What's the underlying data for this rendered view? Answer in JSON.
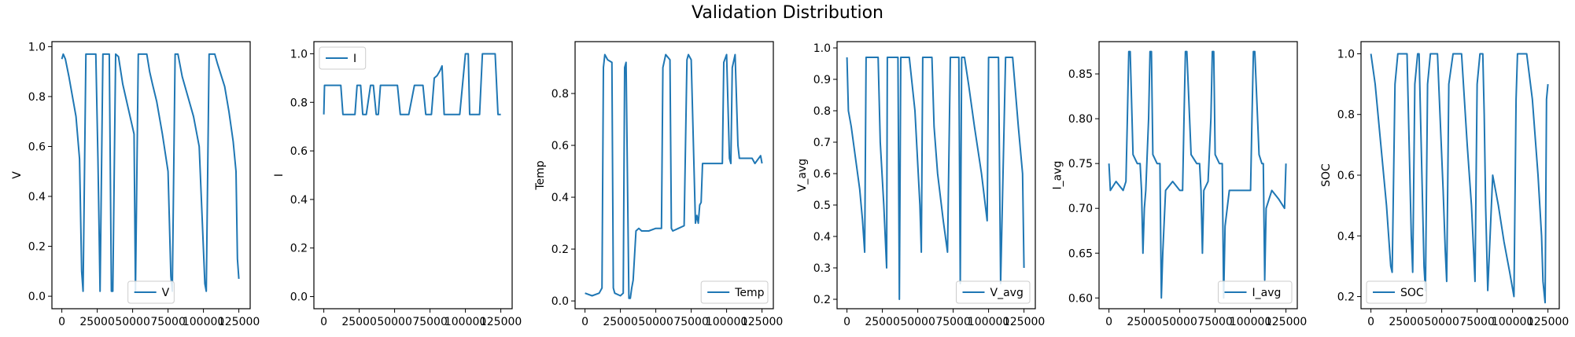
{
  "figure": {
    "title": "Validation Distribution"
  },
  "colors": {
    "series": "#1f77b4",
    "axes": "#000000",
    "legend_frame": "#cccccc"
  },
  "chart_data": [
    {
      "type": "line",
      "id": "V",
      "title": "",
      "xlabel": "",
      "ylabel": "V",
      "xlim": [
        -7000,
        133000
      ],
      "ylim": [
        -0.05,
        1.02
      ],
      "xticks": [
        0,
        25000,
        50000,
        75000,
        100000,
        125000
      ],
      "xtick_labels": [
        "0",
        "25000",
        "50000",
        "75000",
        "100000",
        "125000"
      ],
      "yticks": [
        0.0,
        0.2,
        0.4,
        0.6,
        0.8,
        1.0
      ],
      "ytick_labels": [
        "0.0",
        "0.2",
        "0.4",
        "0.6",
        "0.8",
        "1.0"
      ],
      "legend": {
        "label": "V",
        "loc": "lower center"
      },
      "series": [
        {
          "name": "V",
          "x": [
            0,
            1000,
            2500,
            5000,
            7500,
            10000,
            12500,
            14000,
            15000,
            17000,
            22000,
            24000,
            25500,
            27000,
            29000,
            32000,
            33500,
            35000,
            36000,
            38000,
            40000,
            43000,
            47000,
            51000,
            52000,
            54000,
            58000,
            60000,
            62000,
            64000,
            67000,
            71000,
            75000,
            77000,
            78000,
            80000,
            82000,
            85000,
            89000,
            93000,
            97000,
            101000,
            102000,
            104000,
            106000,
            108000,
            110000,
            115000,
            118000,
            121000,
            123000,
            124000,
            125000
          ],
          "y": [
            0.95,
            0.97,
            0.95,
            0.88,
            0.8,
            0.72,
            0.55,
            0.1,
            0.02,
            0.97,
            0.97,
            0.97,
            0.55,
            0.02,
            0.97,
            0.97,
            0.97,
            0.02,
            0.02,
            0.97,
            0.96,
            0.85,
            0.75,
            0.65,
            0.02,
            0.97,
            0.97,
            0.97,
            0.9,
            0.85,
            0.78,
            0.65,
            0.5,
            0.08,
            0.02,
            0.97,
            0.97,
            0.88,
            0.8,
            0.72,
            0.6,
            0.05,
            0.02,
            0.97,
            0.97,
            0.97,
            0.93,
            0.84,
            0.74,
            0.62,
            0.5,
            0.15,
            0.07
          ]
        }
      ]
    },
    {
      "type": "line",
      "id": "I",
      "title": "",
      "xlabel": "",
      "ylabel": "I",
      "xlim": [
        -7000,
        133000
      ],
      "ylim": [
        -0.05,
        1.05
      ],
      "xticks": [
        0,
        25000,
        50000,
        75000,
        100000,
        125000
      ],
      "xtick_labels": [
        "0",
        "25000",
        "50000",
        "75000",
        "100000",
        "125000"
      ],
      "yticks": [
        0.0,
        0.2,
        0.4,
        0.6,
        0.8,
        1.0
      ],
      "ytick_labels": [
        "0.0",
        "0.2",
        "0.4",
        "0.6",
        "0.8",
        "1.0"
      ],
      "legend": {
        "label": "I",
        "loc": "upper left"
      },
      "series": [
        {
          "name": "I",
          "x": [
            0,
            500,
            2000,
            5000,
            8000,
            10000,
            12000,
            13500,
            14500,
            16000,
            22000,
            23500,
            24000,
            26000,
            27500,
            28500,
            30000,
            33000,
            35000,
            37000,
            38500,
            40000,
            43000,
            48000,
            50000,
            52000,
            54000,
            56000,
            57500,
            60000,
            64000,
            68000,
            70000,
            72000,
            73500,
            76000,
            78000,
            80000,
            82000,
            83500,
            85000,
            88000,
            92000,
            96000,
            100000,
            102000,
            103000,
            104500,
            108000,
            110000,
            112000,
            115000,
            118000,
            121000,
            123000,
            124000,
            125000
          ],
          "y": [
            0.75,
            0.87,
            0.87,
            0.87,
            0.87,
            0.87,
            0.87,
            0.75,
            0.75,
            0.75,
            0.75,
            0.87,
            0.87,
            0.87,
            0.75,
            0.75,
            0.75,
            0.87,
            0.87,
            0.75,
            0.75,
            0.87,
            0.87,
            0.87,
            0.87,
            0.87,
            0.75,
            0.75,
            0.75,
            0.75,
            0.87,
            0.87,
            0.87,
            0.75,
            0.75,
            0.75,
            0.9,
            0.91,
            0.93,
            0.95,
            0.75,
            0.75,
            0.75,
            0.75,
            1.0,
            1.0,
            0.75,
            0.75,
            0.75,
            0.75,
            1.0,
            1.0,
            1.0,
            1.0,
            0.75,
            0.75,
            0.75
          ]
        }
      ]
    },
    {
      "type": "line",
      "id": "Temp",
      "title": "",
      "xlabel": "",
      "ylabel": "Temp",
      "xlim": [
        -7000,
        133000
      ],
      "ylim": [
        -0.03,
        1.0
      ],
      "xticks": [
        0,
        25000,
        50000,
        75000,
        100000,
        125000
      ],
      "xtick_labels": [
        "0",
        "25000",
        "50000",
        "75000",
        "100000",
        "125000"
      ],
      "yticks": [
        0.0,
        0.2,
        0.4,
        0.6,
        0.8
      ],
      "ytick_labels": [
        "0.0",
        "0.2",
        "0.4",
        "0.6",
        "0.8"
      ],
      "legend": {
        "label": "Temp",
        "loc": "lower right"
      },
      "series": [
        {
          "name": "Temp",
          "x": [
            0,
            5000,
            10000,
            12000,
            13000,
            14000,
            16000,
            19000,
            20000,
            21000,
            25000,
            27000,
            28000,
            29000,
            31000,
            32000,
            33000,
            34000,
            36000,
            38000,
            40000,
            45000,
            50000,
            54000,
            55000,
            57000,
            60000,
            61000,
            62000,
            66000,
            70000,
            72000,
            73000,
            75000,
            78000,
            79000,
            80000,
            81000,
            82000,
            83000,
            88000,
            95000,
            97000,
            98000,
            100000,
            102000,
            103000,
            104000,
            106000,
            108000,
            109000,
            112000,
            118000,
            120000,
            124000,
            125000
          ],
          "y": [
            0.03,
            0.02,
            0.03,
            0.05,
            0.9,
            0.95,
            0.93,
            0.92,
            0.05,
            0.03,
            0.02,
            0.03,
            0.9,
            0.92,
            0.01,
            0.01,
            0.05,
            0.08,
            0.27,
            0.28,
            0.27,
            0.27,
            0.28,
            0.28,
            0.9,
            0.95,
            0.93,
            0.28,
            0.27,
            0.28,
            0.29,
            0.93,
            0.95,
            0.93,
            0.3,
            0.33,
            0.3,
            0.37,
            0.38,
            0.53,
            0.53,
            0.53,
            0.53,
            0.92,
            0.95,
            0.55,
            0.53,
            0.9,
            0.95,
            0.6,
            0.55,
            0.55,
            0.55,
            0.53,
            0.56,
            0.53
          ]
        }
      ]
    },
    {
      "type": "line",
      "id": "V_avg",
      "title": "",
      "xlabel": "",
      "ylabel": "V_avg",
      "xlim": [
        -7000,
        133000
      ],
      "ylim": [
        0.17,
        1.02
      ],
      "xticks": [
        0,
        25000,
        50000,
        75000,
        100000,
        125000
      ],
      "xtick_labels": [
        "0",
        "25000",
        "50000",
        "75000",
        "100000",
        "125000"
      ],
      "yticks": [
        0.2,
        0.3,
        0.4,
        0.5,
        0.6,
        0.7,
        0.8,
        0.9,
        1.0
      ],
      "ytick_labels": [
        "0.2",
        "0.3",
        "0.4",
        "0.5",
        "0.6",
        "0.7",
        "0.8",
        "0.9",
        "1.0"
      ],
      "legend": {
        "label": "V_avg",
        "loc": "lower right"
      },
      "series": [
        {
          "name": "V_avg",
          "x": [
            0,
            1000,
            3000,
            6000,
            9000,
            11000,
            12500,
            13500,
            14500,
            18000,
            22000,
            23500,
            26000,
            28000,
            28500,
            29500,
            33000,
            36000,
            37000,
            38000,
            40000,
            44000,
            48000,
            51500,
            52500,
            53500,
            57000,
            60000,
            61500,
            64000,
            68000,
            71000,
            73000,
            74500,
            77000,
            79000,
            80000,
            81000,
            83000,
            86000,
            90000,
            95000,
            99000,
            100000,
            101500,
            104000,
            107000,
            108500,
            112000,
            117000,
            121000,
            124000,
            125000
          ],
          "y": [
            0.97,
            0.8,
            0.75,
            0.65,
            0.55,
            0.45,
            0.35,
            0.97,
            0.97,
            0.97,
            0.97,
            0.7,
            0.5,
            0.3,
            0.97,
            0.97,
            0.97,
            0.97,
            0.2,
            0.97,
            0.97,
            0.97,
            0.8,
            0.5,
            0.35,
            0.97,
            0.97,
            0.97,
            0.75,
            0.6,
            0.45,
            0.35,
            0.97,
            0.97,
            0.97,
            0.97,
            0.25,
            0.97,
            0.97,
            0.88,
            0.75,
            0.6,
            0.45,
            0.97,
            0.97,
            0.97,
            0.97,
            0.25,
            0.97,
            0.97,
            0.75,
            0.6,
            0.3
          ]
        }
      ]
    },
    {
      "type": "line",
      "id": "I_avg",
      "title": "",
      "xlabel": "",
      "ylabel": "I_avg",
      "xlim": [
        -7000,
        133000
      ],
      "ylim": [
        0.588,
        0.886
      ],
      "xticks": [
        0,
        25000,
        50000,
        75000,
        100000,
        125000
      ],
      "xtick_labels": [
        "0",
        "25000",
        "50000",
        "75000",
        "100000",
        "125000"
      ],
      "yticks": [
        0.6,
        0.65,
        0.7,
        0.75,
        0.8,
        0.85
      ],
      "ytick_labels": [
        "0.60",
        "0.65",
        "0.70",
        "0.75",
        "0.80",
        "0.85"
      ],
      "legend": {
        "label": "I_avg",
        "loc": "lower right"
      },
      "series": [
        {
          "name": "I_avg",
          "x": [
            0,
            1000,
            5000,
            10000,
            12000,
            13000,
            14000,
            15000,
            17000,
            20000,
            22000,
            23000,
            24000,
            25000,
            26000,
            28000,
            29000,
            30000,
            31000,
            34000,
            36000,
            37000,
            38000,
            40000,
            45000,
            50000,
            52000,
            53000,
            54000,
            55000,
            58000,
            62000,
            64000,
            65000,
            66000,
            67000,
            70000,
            72000,
            73000,
            74000,
            75000,
            78000,
            80000,
            81000,
            82000,
            85000,
            90000,
            95000,
            100000,
            101000,
            102000,
            103000,
            106000,
            108000,
            109000,
            110000,
            111000,
            115000,
            120000,
            124000,
            125000
          ],
          "y": [
            0.75,
            0.72,
            0.73,
            0.72,
            0.73,
            0.8,
            0.875,
            0.875,
            0.76,
            0.75,
            0.75,
            0.72,
            0.65,
            0.7,
            0.72,
            0.8,
            0.875,
            0.875,
            0.76,
            0.75,
            0.75,
            0.6,
            0.65,
            0.72,
            0.73,
            0.72,
            0.72,
            0.8,
            0.875,
            0.875,
            0.76,
            0.75,
            0.75,
            0.72,
            0.65,
            0.72,
            0.73,
            0.8,
            0.875,
            0.875,
            0.76,
            0.75,
            0.75,
            0.6,
            0.68,
            0.72,
            0.72,
            0.72,
            0.72,
            0.8,
            0.875,
            0.875,
            0.76,
            0.75,
            0.75,
            0.62,
            0.7,
            0.72,
            0.71,
            0.7,
            0.75
          ]
        }
      ]
    },
    {
      "type": "line",
      "id": "SOC",
      "title": "",
      "xlabel": "",
      "ylabel": "SOC",
      "xlim": [
        -7000,
        133000
      ],
      "ylim": [
        0.16,
        1.04
      ],
      "xticks": [
        0,
        25000,
        50000,
        75000,
        100000,
        125000
      ],
      "xtick_labels": [
        "0",
        "25000",
        "50000",
        "75000",
        "100000",
        "125000"
      ],
      "yticks": [
        0.2,
        0.4,
        0.6,
        0.8,
        1.0
      ],
      "ytick_labels": [
        "0.2",
        "0.4",
        "0.6",
        "0.8",
        "1.0"
      ],
      "legend": {
        "label": "SOC",
        "loc": "lower left"
      },
      "series": [
        {
          "name": "SOC",
          "x": [
            0,
            3000,
            7000,
            11000,
            12500,
            14000,
            15000,
            17000,
            19000,
            22000,
            25500,
            27000,
            28500,
            29500,
            31000,
            33000,
            34000,
            36000,
            37500,
            38500,
            40000,
            42000,
            44000,
            47000,
            51000,
            52500,
            53500,
            55000,
            58000,
            61000,
            64000,
            68000,
            71000,
            72500,
            73500,
            75000,
            77000,
            79000,
            80000,
            81000,
            82500,
            86000,
            90000,
            94000,
            98000,
            101000,
            102500,
            103500,
            105000,
            108000,
            110000,
            114000,
            118000,
            120500,
            121500,
            123000,
            124000,
            125000
          ],
          "y": [
            1.0,
            0.9,
            0.7,
            0.5,
            0.4,
            0.3,
            0.28,
            0.9,
            1.0,
            1.0,
            1.0,
            0.7,
            0.4,
            0.28,
            0.9,
            1.0,
            1.0,
            0.6,
            0.3,
            0.22,
            0.9,
            1.0,
            1.0,
            1.0,
            0.55,
            0.35,
            0.25,
            0.9,
            1.0,
            1.0,
            1.0,
            0.7,
            0.5,
            0.35,
            0.25,
            0.9,
            1.0,
            1.0,
            0.8,
            0.5,
            0.22,
            0.6,
            0.5,
            0.38,
            0.28,
            0.2,
            0.85,
            1.0,
            1.0,
            1.0,
            1.0,
            0.85,
            0.6,
            0.4,
            0.25,
            0.18,
            0.85,
            0.9
          ]
        }
      ]
    }
  ]
}
